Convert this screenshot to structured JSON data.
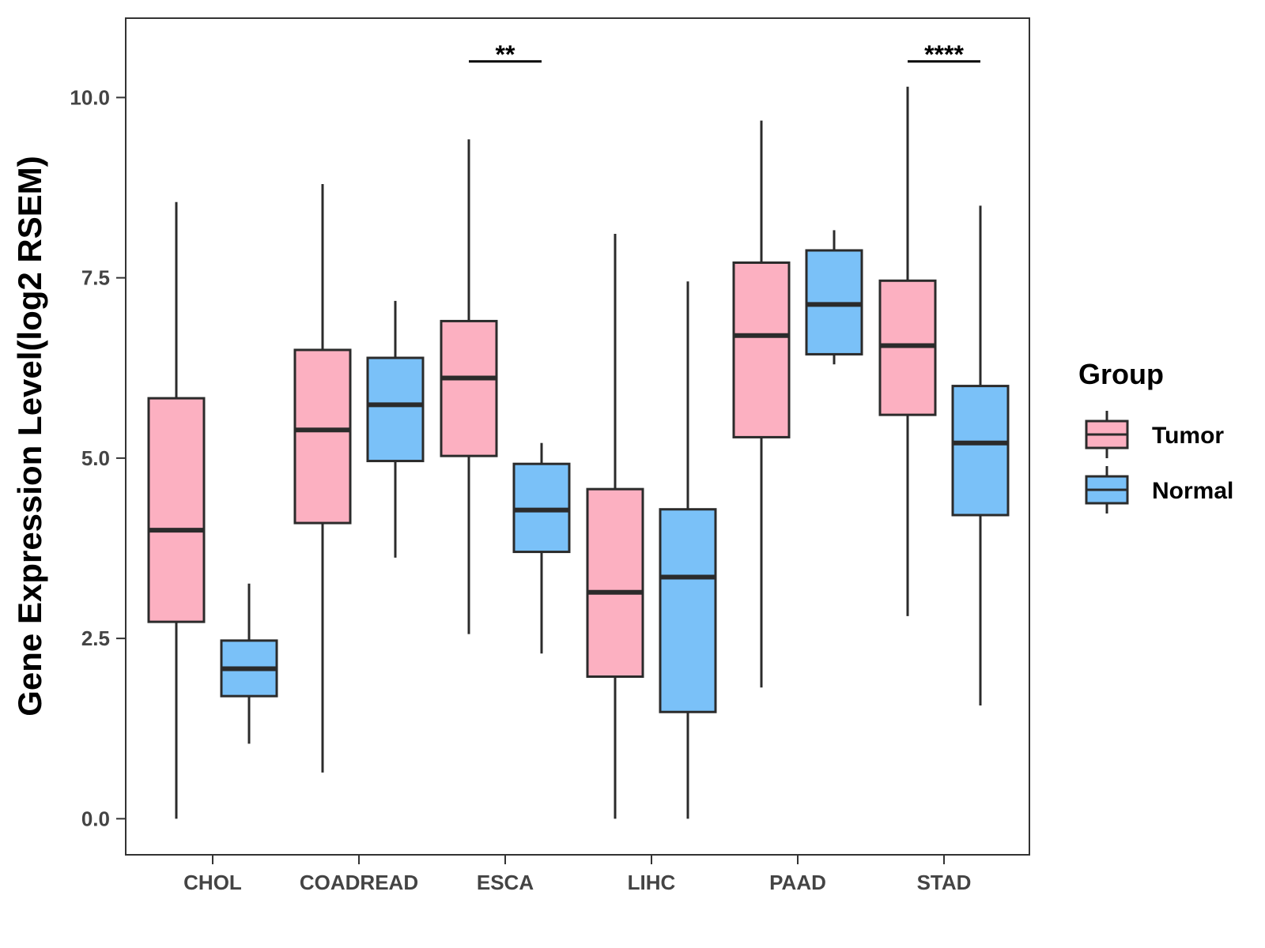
{
  "colors": {
    "tumor": "#fcb0c1",
    "normal": "#7ac1f8",
    "stroke": "#2b2b2b",
    "panel_border": "#333333"
  },
  "chart_data": {
    "type": "boxplot",
    "title": "",
    "xlabel": "",
    "ylabel": "Gene Expression Level(log2 RSEM)",
    "ylim": [
      -0.5,
      11.1
    ],
    "yticks": [
      0.0,
      2.5,
      5.0,
      7.5,
      10.0
    ],
    "ytick_labels": [
      "0.0",
      "2.5",
      "5.0",
      "7.5",
      "10.0"
    ],
    "grid": false,
    "categories": [
      "CHOL",
      "COADREAD",
      "ESCA",
      "LIHC",
      "PAAD",
      "STAD"
    ],
    "legend": {
      "title": "Group",
      "position": "right",
      "entries": [
        {
          "label": "Tumor",
          "color_key": "tumor"
        },
        {
          "label": "Normal",
          "color_key": "normal"
        }
      ]
    },
    "series": [
      {
        "name": "Tumor",
        "color_key": "tumor",
        "boxes": [
          {
            "category": "CHOL",
            "min": 0.0,
            "q1": 2.73,
            "median": 4.0,
            "q3": 5.83,
            "max": 8.55
          },
          {
            "category": "COADREAD",
            "min": 0.64,
            "q1": 4.1,
            "median": 5.39,
            "q3": 6.5,
            "max": 8.8
          },
          {
            "category": "ESCA",
            "min": 2.56,
            "q1": 5.03,
            "median": 6.11,
            "q3": 6.9,
            "max": 9.42
          },
          {
            "category": "LIHC",
            "min": 0.0,
            "q1": 1.97,
            "median": 3.14,
            "q3": 4.57,
            "max": 8.11
          },
          {
            "category": "PAAD",
            "min": 1.82,
            "q1": 5.29,
            "median": 6.7,
            "q3": 7.71,
            "max": 9.68
          },
          {
            "category": "STAD",
            "min": 2.81,
            "q1": 5.6,
            "median": 6.56,
            "q3": 7.46,
            "max": 10.15
          }
        ]
      },
      {
        "name": "Normal",
        "color_key": "normal",
        "boxes": [
          {
            "category": "CHOL",
            "min": 1.04,
            "q1": 1.7,
            "median": 2.08,
            "q3": 2.47,
            "max": 3.26
          },
          {
            "category": "COADREAD",
            "min": 3.62,
            "q1": 4.96,
            "median": 5.74,
            "q3": 6.39,
            "max": 7.18
          },
          {
            "category": "ESCA",
            "min": 2.29,
            "q1": 3.7,
            "median": 4.28,
            "q3": 4.92,
            "max": 5.21
          },
          {
            "category": "LIHC",
            "min": 0.0,
            "q1": 1.48,
            "median": 3.35,
            "q3": 4.29,
            "max": 7.45
          },
          {
            "category": "PAAD",
            "min": 6.3,
            "q1": 6.44,
            "median": 7.13,
            "q3": 7.88,
            "max": 8.16
          },
          {
            "category": "STAD",
            "min": 1.57,
            "q1": 4.21,
            "median": 5.21,
            "q3": 6.0,
            "max": 8.5
          }
        ]
      }
    ],
    "annotations": [
      {
        "category": "ESCA",
        "label": "**",
        "y": 10.5
      },
      {
        "category": "STAD",
        "label": "****",
        "y": 10.5
      }
    ]
  }
}
